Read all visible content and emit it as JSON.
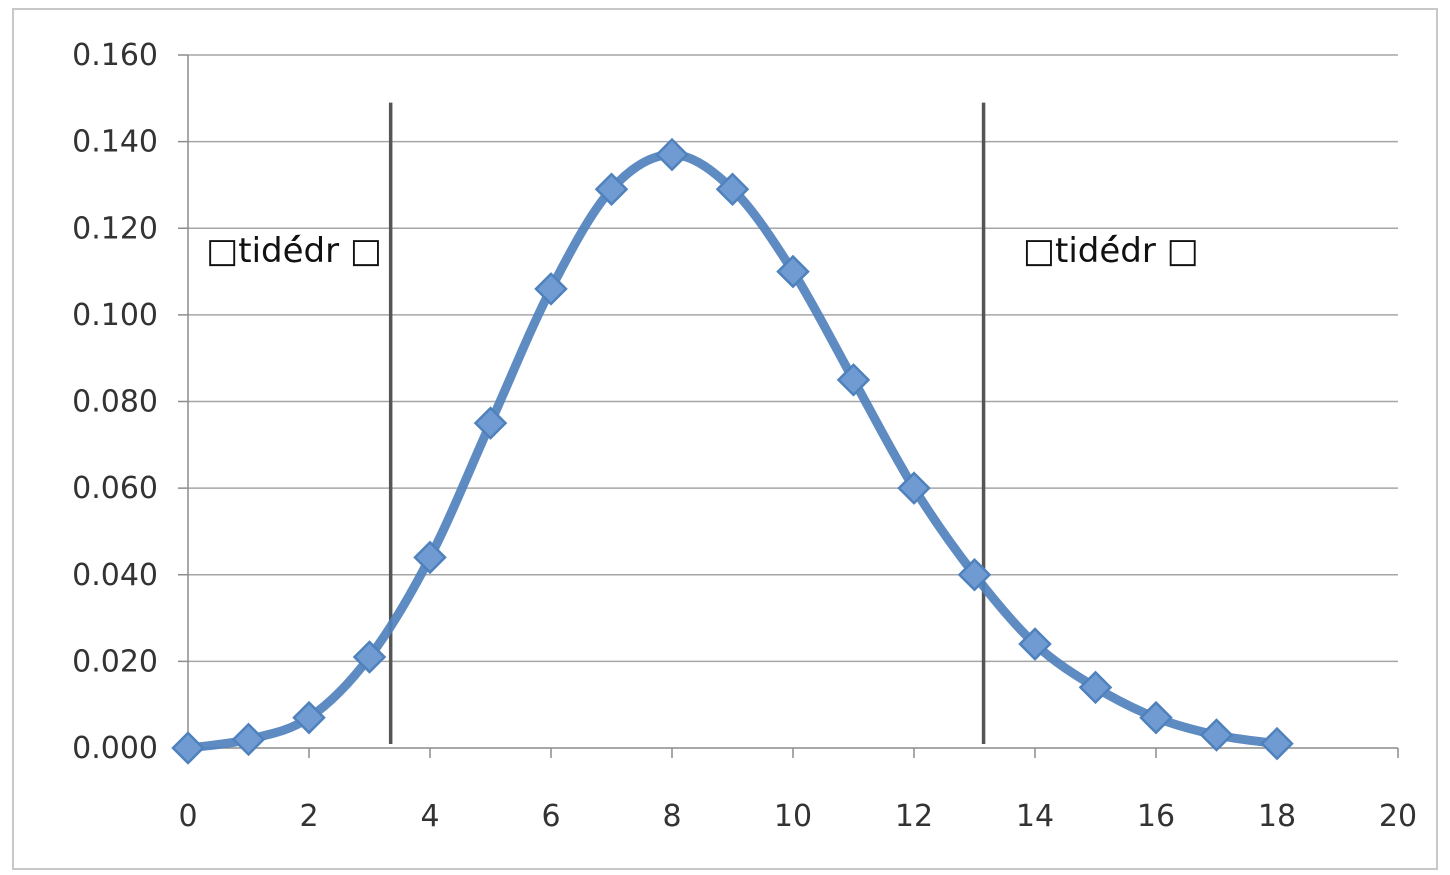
{
  "chart_data": {
    "type": "scatter",
    "title": "",
    "xlabel": "",
    "ylabel": "",
    "xlim": [
      0,
      20
    ],
    "ylim": [
      0,
      0.16
    ],
    "x_ticks": [
      "0",
      "2",
      "4",
      "6",
      "8",
      "10",
      "12",
      "14",
      "16",
      "18",
      "20"
    ],
    "y_ticks": [
      "0.000",
      "0.020",
      "0.040",
      "0.060",
      "0.080",
      "0.100",
      "0.120",
      "0.140",
      "0.160"
    ],
    "grid": "horizontal",
    "legend": "none",
    "series": [
      {
        "color": "#4f81bd",
        "line": "smooth",
        "marker": "diamond",
        "points": [
          {
            "x": 0,
            "y": 0.0
          },
          {
            "x": 1,
            "y": 0.002
          },
          {
            "x": 2,
            "y": 0.007
          },
          {
            "x": 3,
            "y": 0.021
          },
          {
            "x": 4,
            "y": 0.044
          },
          {
            "x": 5,
            "y": 0.075
          },
          {
            "x": 6,
            "y": 0.106
          },
          {
            "x": 7,
            "y": 0.129
          },
          {
            "x": 8,
            "y": 0.137
          },
          {
            "x": 9,
            "y": 0.129
          },
          {
            "x": 10,
            "y": 0.11
          },
          {
            "x": 11,
            "y": 0.085
          },
          {
            "x": 12,
            "y": 0.06
          },
          {
            "x": 13,
            "y": 0.04
          },
          {
            "x": 14,
            "y": 0.024
          },
          {
            "x": 15,
            "y": 0.014
          },
          {
            "x": 16,
            "y": 0.007
          },
          {
            "x": 17,
            "y": 0.003
          },
          {
            "x": 18,
            "y": 0.001
          }
        ]
      }
    ],
    "vertical_lines": [
      {
        "x": 3.35,
        "color": "#555555"
      },
      {
        "x": 13.15,
        "color": "#555555"
      }
    ],
    "annotations": [
      {
        "text": "□tidé́dr □",
        "x": 0.3,
        "y": 0.115
      },
      {
        "text": "□tidé́dr □",
        "x": 13.8,
        "y": 0.115
      }
    ]
  }
}
